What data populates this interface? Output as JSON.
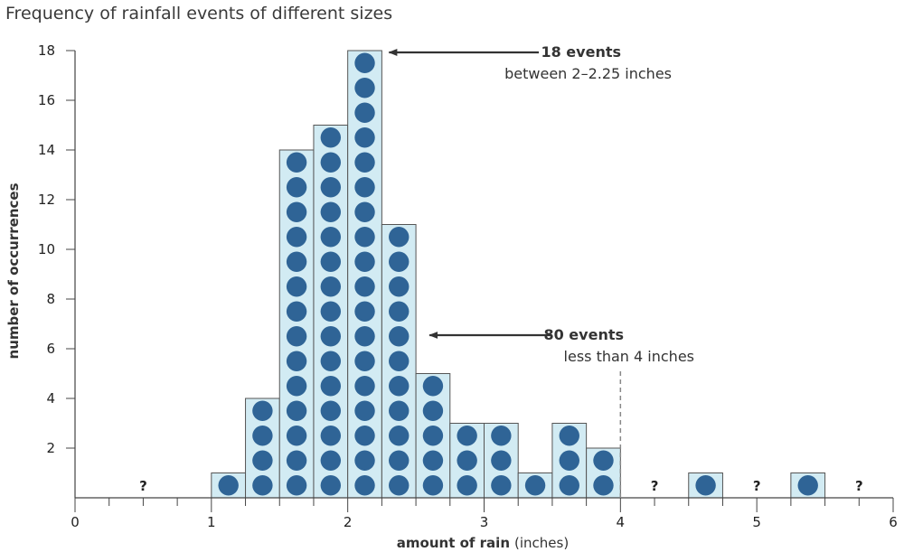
{
  "chart_data": {
    "type": "bar",
    "title": "Frequency of rainfall events of different sizes",
    "xlabel_bold": "amount of rain",
    "xlabel_unit": "(inches)",
    "ylabel": "number of occurrences",
    "bin_width": 0.25,
    "xlim": [
      0,
      6
    ],
    "ylim": [
      0,
      18
    ],
    "xticks": [
      0,
      1,
      2,
      3,
      4,
      5,
      6
    ],
    "yticks": [
      2,
      4,
      6,
      8,
      10,
      12,
      14,
      16,
      18
    ],
    "bins": [
      {
        "start": 1.0,
        "count": 1
      },
      {
        "start": 1.25,
        "count": 4
      },
      {
        "start": 1.5,
        "count": 14
      },
      {
        "start": 1.75,
        "count": 15
      },
      {
        "start": 2.0,
        "count": 18
      },
      {
        "start": 2.25,
        "count": 11
      },
      {
        "start": 2.5,
        "count": 5
      },
      {
        "start": 2.75,
        "count": 3
      },
      {
        "start": 3.0,
        "count": 3
      },
      {
        "start": 3.25,
        "count": 1
      },
      {
        "start": 3.5,
        "count": 3
      },
      {
        "start": 3.75,
        "count": 2
      },
      {
        "start": 4.5,
        "count": 1
      },
      {
        "start": 5.25,
        "count": 1
      }
    ],
    "unknown_marks": [
      {
        "x": 0.5,
        "text": "?"
      },
      {
        "x": 4.25,
        "text": "?"
      },
      {
        "x": 5.0,
        "text": "?"
      },
      {
        "x": 5.75,
        "text": "?"
      }
    ],
    "annotations": [
      {
        "bold": "18 events",
        "text": "between 2–2.25 inches",
        "arrow_to_x": 2.25,
        "arrow_to_y": 18
      },
      {
        "bold": "80 events",
        "text": "less than 4 inches",
        "arrow_to_x": 2.6,
        "arrow_to_y": 6.5
      }
    ],
    "threshold_x": 4,
    "colors": {
      "bar_fill": "#d2ebf3",
      "bar_stroke": "#555555",
      "dot": "#2f6496",
      "axis": "#444444",
      "arrow": "#333333",
      "dashed": "#888888"
    }
  }
}
